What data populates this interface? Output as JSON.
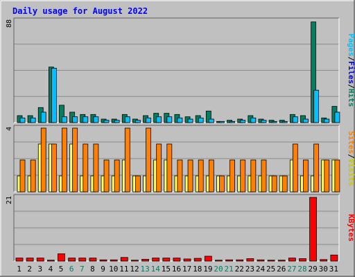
{
  "chart_data": [
    {
      "type": "bar",
      "title": "Daily usage for August 2022",
      "ymax_label": "88",
      "legend": [
        "Pages",
        "/",
        "Files",
        "/",
        "Hits"
      ],
      "categories": [
        "1",
        "2",
        "3",
        "4",
        "5",
        "6",
        "7",
        "8",
        "9",
        "10",
        "11",
        "12",
        "13",
        "14",
        "15",
        "16",
        "17",
        "18",
        "19",
        "20",
        "21",
        "22",
        "23",
        "24",
        "25",
        "26",
        "27",
        "28",
        "29",
        "30",
        "31"
      ],
      "ylim": [
        0,
        88
      ],
      "series": [
        {
          "name": "Hits",
          "values": [
            6,
            6,
            13,
            48,
            15,
            9,
            7,
            7,
            3,
            3,
            7,
            3,
            6,
            8,
            8,
            7,
            5,
            6,
            10,
            1,
            2,
            3,
            6,
            3,
            2,
            2,
            7,
            6,
            87,
            4,
            14
          ]
        },
        {
          "name": "Files",
          "values": [
            4,
            4,
            9,
            47,
            5,
            5,
            5,
            5,
            2,
            2,
            5,
            2,
            4,
            5,
            5,
            4,
            3,
            4,
            3,
            1,
            1,
            2,
            4,
            2,
            1,
            1,
            5,
            3,
            28,
            3,
            9
          ]
        },
        {
          "name": "Pages",
          "values": [
            0,
            0,
            0,
            0,
            0,
            0,
            0,
            0,
            0,
            0,
            0,
            0,
            0,
            0,
            0,
            0,
            0,
            0,
            0,
            0,
            0,
            0,
            0,
            0,
            0,
            0,
            0,
            0,
            0,
            0,
            0
          ]
        }
      ]
    },
    {
      "type": "bar",
      "ymax_label": "4",
      "legend": [
        "Sites",
        "/",
        "Visits"
      ],
      "categories": [
        "1",
        "2",
        "3",
        "4",
        "5",
        "6",
        "7",
        "8",
        "9",
        "10",
        "11",
        "12",
        "13",
        "14",
        "15",
        "16",
        "17",
        "18",
        "19",
        "20",
        "21",
        "22",
        "23",
        "24",
        "25",
        "26",
        "27",
        "28",
        "29",
        "30",
        "31"
      ],
      "ylim": [
        0,
        4
      ],
      "series": [
        {
          "name": "Visits",
          "values": [
            2,
            2,
            4,
            3,
            4,
            4,
            3,
            3,
            2,
            2,
            4,
            1,
            4,
            3,
            3,
            2,
            2,
            2,
            2,
            1,
            2,
            2,
            2,
            2,
            1,
            1,
            3,
            2,
            3,
            2,
            2
          ]
        },
        {
          "name": "Sites",
          "values": [
            1,
            1,
            3,
            3,
            1,
            3,
            1,
            1,
            1,
            1,
            2,
            1,
            1,
            2,
            2,
            1,
            1,
            1,
            1,
            1,
            1,
            1,
            1,
            1,
            1,
            1,
            2,
            1,
            1,
            2,
            2
          ]
        }
      ]
    },
    {
      "type": "bar",
      "ymax_label": "21",
      "legend": [
        "KBytes"
      ],
      "categories": [
        "1",
        "2",
        "3",
        "4",
        "5",
        "6",
        "7",
        "8",
        "9",
        "10",
        "11",
        "12",
        "13",
        "14",
        "15",
        "16",
        "17",
        "18",
        "19",
        "20",
        "21",
        "22",
        "23",
        "24",
        "25",
        "26",
        "27",
        "28",
        "29",
        "30",
        "31"
      ],
      "ylim": [
        0,
        21
      ],
      "series": [
        {
          "name": "KBytes",
          "values": [
            1,
            1,
            1,
            0.3,
            2.4,
            1,
            1,
            1,
            0.4,
            0.4,
            1.2,
            0.3,
            0.6,
            1,
            1,
            1,
            0.7,
            0.9,
            1.6,
            0.3,
            0.4,
            0.4,
            0.8,
            0.4,
            0.3,
            0.3,
            1,
            0.8,
            21,
            0.5,
            2
          ]
        }
      ]
    }
  ],
  "weekend_days": [
    "6",
    "7",
    "13",
    "14",
    "20",
    "21",
    "27",
    "28"
  ],
  "colors": {
    "background": "#c0c0c0",
    "plot_bg": "#c0c0c0",
    "grid": "#8a8a8a",
    "title": "#0000ff",
    "pages": "#00c0ff",
    "files": "#00c0ff",
    "hits": "#008060",
    "visits": "#ff8000",
    "sites": "#ffff60",
    "kbytes": "#ff0000",
    "weekend_label": "#00805f",
    "weekday_label": "#000000"
  }
}
